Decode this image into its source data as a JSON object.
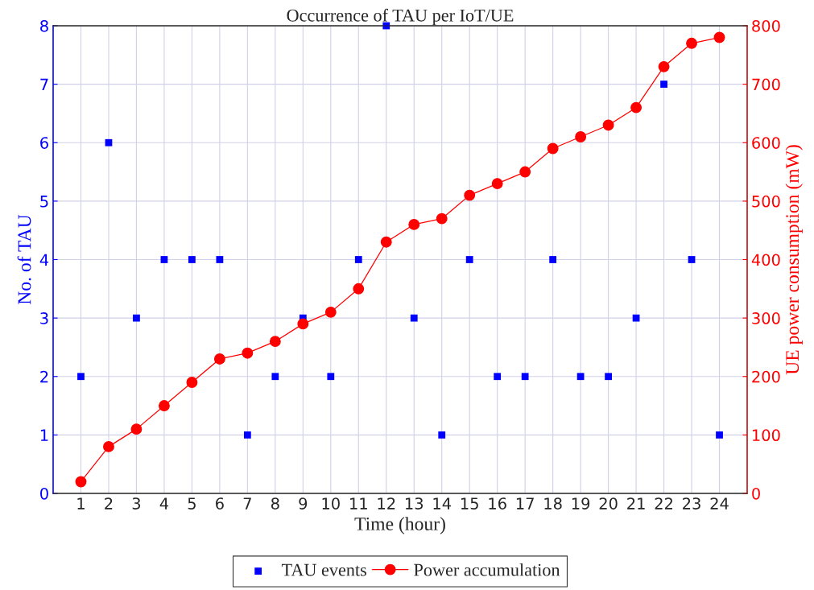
{
  "chart_data": {
    "type": "scatter",
    "title": "Occurrence of TAU per IoT/UE",
    "xlabel": "Time (hour)",
    "ylabel": "No. of TAU",
    "y2label": "UE power consumption (mW)",
    "x": [
      1,
      2,
      3,
      4,
      5,
      6,
      7,
      8,
      9,
      10,
      11,
      12,
      13,
      14,
      15,
      16,
      17,
      18,
      19,
      20,
      21,
      22,
      23,
      24
    ],
    "series": [
      {
        "name": "TAU events",
        "marker": "square",
        "color": "#0000ff",
        "values": [
          2,
          6,
          3,
          4,
          4,
          4,
          1,
          2,
          3,
          2,
          4,
          8,
          3,
          1,
          4,
          2,
          2,
          4,
          2,
          2,
          3,
          7,
          4,
          1
        ]
      },
      {
        "name": "Power accumulation",
        "type": "line",
        "marker": "circle",
        "axis": "y2",
        "color": "#ff0000",
        "values": [
          20,
          80,
          110,
          150,
          190,
          230,
          240,
          260,
          290,
          310,
          350,
          430,
          460,
          470,
          510,
          530,
          550,
          590,
          610,
          630,
          660,
          730,
          770,
          780
        ]
      }
    ],
    "xlim": [
      0,
      25
    ],
    "xticks": [
      1,
      2,
      3,
      4,
      5,
      6,
      7,
      8,
      9,
      10,
      11,
      12,
      13,
      14,
      15,
      16,
      17,
      18,
      19,
      20,
      21,
      22,
      23,
      24
    ],
    "ylim": [
      0,
      8
    ],
    "yticks": [
      0,
      1,
      2,
      3,
      4,
      5,
      6,
      7,
      8
    ],
    "y2lim": [
      0,
      800
    ],
    "y2ticks": [
      0,
      100,
      200,
      300,
      400,
      500,
      600,
      700,
      800
    ],
    "grid": true,
    "legend": "bottom"
  }
}
